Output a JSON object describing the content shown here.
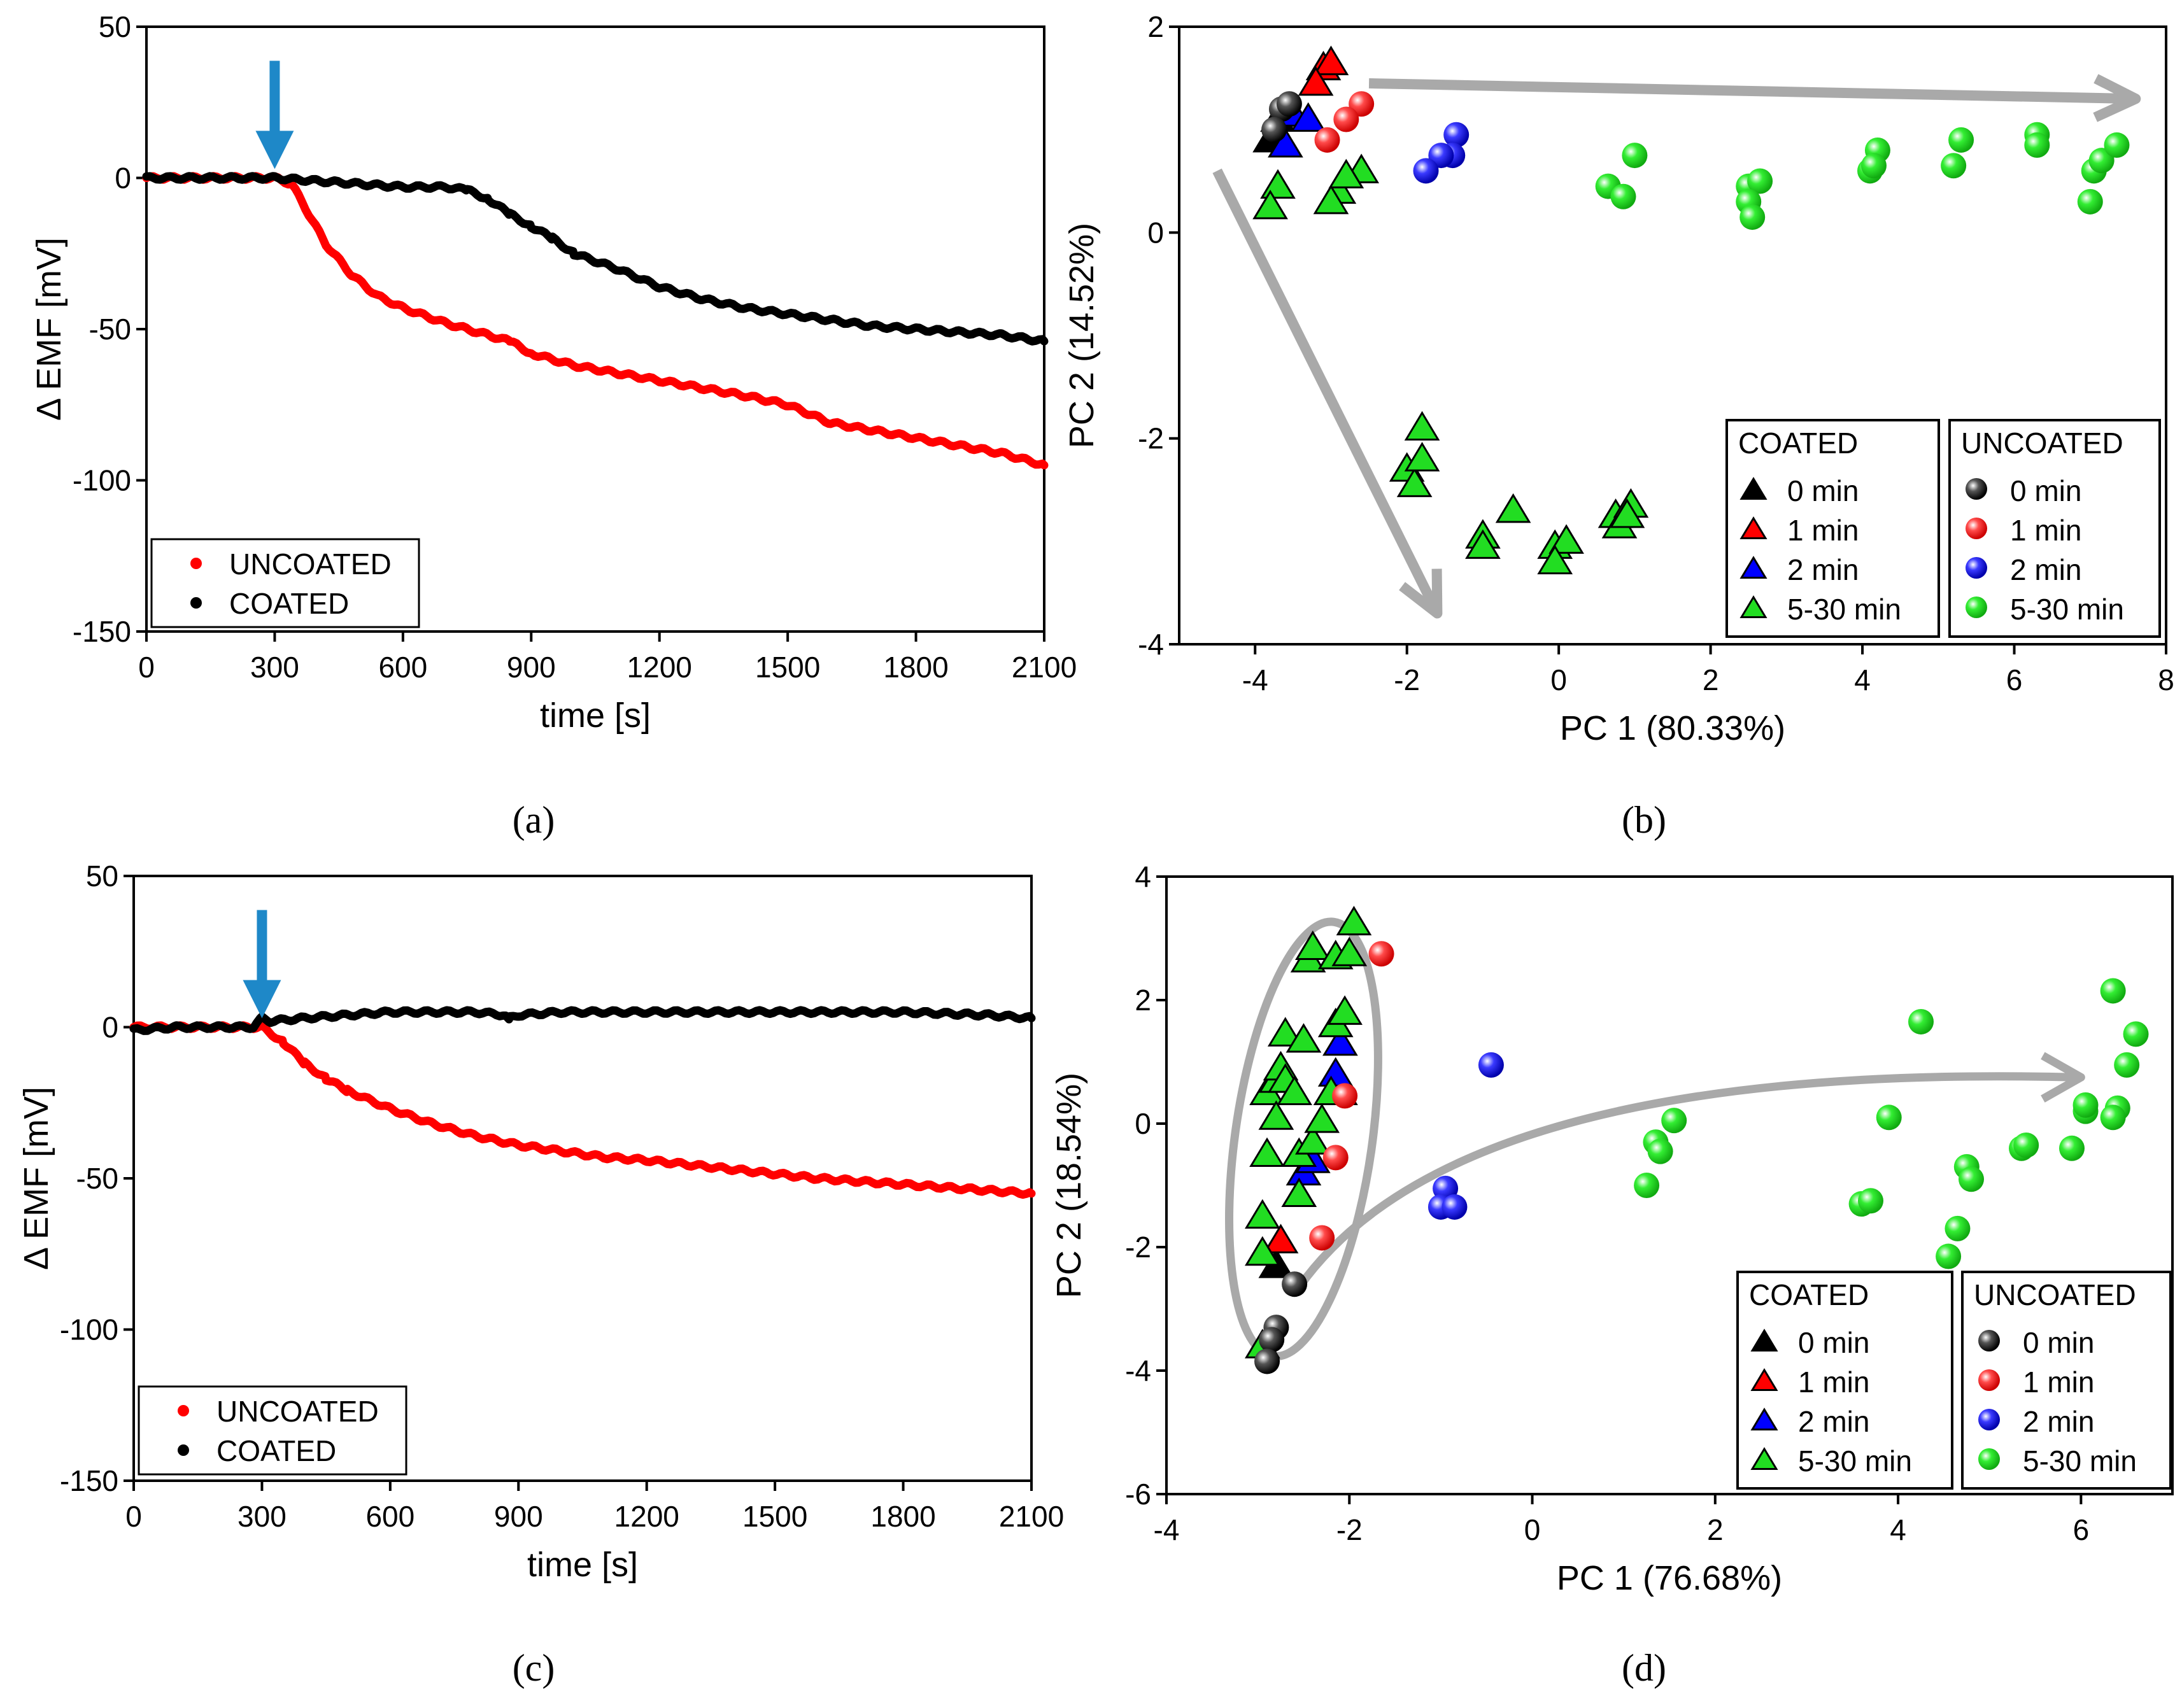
{
  "figure": {
    "panels": [
      {
        "id": "a",
        "label": "(a)"
      },
      {
        "id": "b",
        "label": "(b)"
      },
      {
        "id": "c",
        "label": "(c)"
      },
      {
        "id": "d",
        "label": "(d)"
      }
    ]
  },
  "chart_data": [
    {
      "panel": "(a)",
      "type": "line",
      "xlabel": "time [s]",
      "ylabel": "Δ EMF [mV]",
      "xlim": [
        0,
        2100
      ],
      "ylim": [
        -150,
        50
      ],
      "xticks": [
        0,
        300,
        600,
        900,
        1200,
        1500,
        1800,
        2100
      ],
      "yticks": [
        -150,
        -100,
        -50,
        0,
        50
      ],
      "annotation": "arrow at t = 300 s",
      "arrow_x": 300,
      "legend": [
        "UNCOATED",
        "COATED"
      ],
      "series": [
        {
          "name": "UNCOATED",
          "color": "#ff0000",
          "x": [
            0,
            100,
            200,
            300,
            340,
            380,
            420,
            480,
            540,
            600,
            700,
            800,
            850,
            900,
            1000,
            1200,
            1400,
            1500,
            1600,
            1800,
            2000,
            2100
          ],
          "y": [
            0,
            0,
            0,
            0,
            -2,
            -12,
            -22,
            -32,
            -39,
            -43,
            -48,
            -52,
            -54,
            -58,
            -62,
            -67,
            -72,
            -75,
            -81,
            -86,
            -91,
            -95
          ]
        },
        {
          "name": "COATED",
          "color": "#000000",
          "x": [
            0,
            100,
            200,
            300,
            400,
            500,
            600,
            700,
            750,
            800,
            850,
            900,
            950,
            1000,
            1100,
            1200,
            1300,
            1400,
            1500,
            1600,
            1700,
            1800,
            1900,
            2000,
            2100
          ],
          "y": [
            0,
            0,
            0,
            0,
            -1,
            -2,
            -3,
            -3,
            -4,
            -7,
            -12,
            -16,
            -20,
            -25,
            -30,
            -36,
            -40,
            -43,
            -45,
            -47,
            -49,
            -50,
            -51,
            -52,
            -54
          ]
        }
      ]
    },
    {
      "panel": "(b)",
      "type": "scatter",
      "xlabel": "PC 1 (80.33%)",
      "ylabel": "PC 2 (14.52%)",
      "xlim": [
        -5,
        8
      ],
      "ylim": [
        -4,
        2
      ],
      "xticks": [
        -4,
        -2,
        0,
        2,
        4,
        6,
        8
      ],
      "yticks": [
        -4,
        -2,
        0,
        2
      ],
      "annotation": "grey arrows from origin cluster",
      "arrows": [
        {
          "from": [
            -2.5,
            1.45
          ],
          "to": [
            7.6,
            1.3
          ]
        },
        {
          "from": [
            -4.5,
            0.6
          ],
          "to": [
            -1.6,
            -3.7
          ]
        }
      ],
      "legend_groups": [
        {
          "title": "COATED",
          "marker": "triangle",
          "entries": [
            "0 min",
            "1 min",
            "2 min",
            "5-30 min"
          ]
        },
        {
          "title": "UNCOATED",
          "marker": "sphere",
          "entries": [
            "0 min",
            "1 min",
            "2 min",
            "5-30 min"
          ]
        }
      ],
      "series": [
        {
          "name": "COATED 0 min",
          "marker": "triangle",
          "color": "#000000",
          "points": [
            [
              -3.8,
              0.9
            ],
            [
              -3.7,
              1.1
            ],
            [
              -3.6,
              1.2
            ]
          ]
        },
        {
          "name": "COATED 1 min",
          "marker": "triangle",
          "color": "#ff0000",
          "points": [
            [
              -3.1,
              1.6
            ],
            [
              -3.0,
              1.65
            ],
            [
              -3.2,
              1.45
            ]
          ]
        },
        {
          "name": "COATED 2 min",
          "marker": "triangle",
          "color": "#0000ff",
          "points": [
            [
              -3.5,
              1.15
            ],
            [
              -3.3,
              1.1
            ],
            [
              -3.6,
              0.85
            ]
          ]
        },
        {
          "name": "COATED 5-30 min",
          "marker": "triangle",
          "color": "#22dd22",
          "points": [
            [
              -3.7,
              0.45
            ],
            [
              -3.8,
              0.25
            ],
            [
              -2.9,
              0.4
            ],
            [
              -2.6,
              0.6
            ],
            [
              -2.8,
              0.55
            ],
            [
              -3.0,
              0.3
            ],
            [
              -1.8,
              -1.9
            ],
            [
              -2.0,
              -2.3
            ],
            [
              -1.9,
              -2.45
            ],
            [
              -1.8,
              -2.2
            ],
            [
              -1.0,
              -2.95
            ],
            [
              -1.0,
              -3.05
            ],
            [
              -0.6,
              -2.7
            ],
            [
              -0.05,
              -3.05
            ],
            [
              0.1,
              -3.0
            ],
            [
              -0.05,
              -3.2
            ],
            [
              0.75,
              -2.75
            ],
            [
              0.8,
              -2.85
            ],
            [
              0.95,
              -2.65
            ],
            [
              0.9,
              -2.75
            ]
          ]
        },
        {
          "name": "UNCOATED 0 min",
          "marker": "sphere",
          "color": "#000000",
          "points": [
            [
              -3.65,
              1.2
            ],
            [
              -3.55,
              1.25
            ],
            [
              -3.75,
              1.0
            ]
          ]
        },
        {
          "name": "UNCOATED 1 min",
          "marker": "sphere",
          "color": "#ff0000",
          "points": [
            [
              -2.6,
              1.25
            ],
            [
              -2.8,
              1.1
            ],
            [
              -3.05,
              0.9
            ]
          ]
        },
        {
          "name": "UNCOATED 2 min",
          "marker": "sphere",
          "color": "#0000ff",
          "points": [
            [
              -1.35,
              0.95
            ],
            [
              -1.4,
              0.75
            ],
            [
              -1.55,
              0.75
            ],
            [
              -1.75,
              0.6
            ]
          ]
        },
        {
          "name": "UNCOATED 5-30 min",
          "marker": "sphere",
          "color": "#22dd22",
          "points": [
            [
              0.65,
              0.45
            ],
            [
              0.85,
              0.35
            ],
            [
              1.0,
              0.75
            ],
            [
              2.5,
              0.45
            ],
            [
              2.65,
              0.5
            ],
            [
              2.5,
              0.3
            ],
            [
              2.55,
              0.15
            ],
            [
              4.1,
              0.6
            ],
            [
              4.2,
              0.8
            ],
            [
              4.15,
              0.65
            ],
            [
              5.2,
              0.65
            ],
            [
              5.3,
              0.9
            ],
            [
              6.3,
              0.95
            ],
            [
              6.3,
              0.85
            ],
            [
              7.0,
              0.3
            ],
            [
              7.05,
              0.6
            ],
            [
              7.15,
              0.7
            ],
            [
              7.35,
              0.85
            ]
          ]
        }
      ]
    },
    {
      "panel": "(c)",
      "type": "line",
      "xlabel": "time [s]",
      "ylabel": "Δ EMF [mV]",
      "xlim": [
        0,
        2100
      ],
      "ylim": [
        -150,
        50
      ],
      "xticks": [
        0,
        300,
        600,
        900,
        1200,
        1500,
        1800,
        2100
      ],
      "yticks": [
        -150,
        -100,
        -50,
        0,
        50
      ],
      "annotation": "arrow at t = 300 s",
      "arrow_x": 300,
      "legend": [
        "UNCOATED",
        "COATED"
      ],
      "series": [
        {
          "name": "UNCOATED",
          "color": "#ff0000",
          "x": [
            0,
            100,
            200,
            300,
            350,
            400,
            450,
            500,
            600,
            700,
            800,
            900,
            1000,
            1100,
            1200,
            1400,
            1600,
            1800,
            2000,
            2100
          ],
          "y": [
            0,
            0,
            0,
            0,
            -5,
            -12,
            -17,
            -21,
            -27,
            -32,
            -36,
            -39,
            -41,
            -43,
            -44,
            -47,
            -50,
            -52,
            -54,
            -55
          ]
        },
        {
          "name": "COATED",
          "color": "#000000",
          "x": [
            0,
            100,
            200,
            280,
            300,
            320,
            400,
            500,
            600,
            700,
            800,
            870,
            880,
            900,
            1000,
            1200,
            1400,
            1600,
            1800,
            2000,
            2100
          ],
          "y": [
            -1,
            0,
            0,
            0,
            3,
            2,
            3,
            4,
            5,
            5,
            5,
            4,
            3,
            4,
            5,
            5,
            5,
            5,
            5,
            4,
            3
          ]
        }
      ]
    },
    {
      "panel": "(d)",
      "type": "scatter",
      "xlabel": "PC 1 (76.68%)",
      "ylabel": "PC 2 (18.54%)",
      "xlim": [
        -4,
        7
      ],
      "ylim": [
        -6,
        4
      ],
      "xticks": [
        -4,
        -2,
        0,
        2,
        4,
        6
      ],
      "yticks": [
        -6,
        -4,
        -2,
        0,
        2,
        4
      ],
      "annotation": "grey ellipse around origin cluster and curved arrow to the right",
      "ellipse": {
        "cx": -2.5,
        "cy": -0.25,
        "rx": 0.75,
        "ry": 3.55
      },
      "arrow": {
        "from": [
          -2.55,
          -2.65
        ],
        "control": [
          -0.8,
          1.0
        ],
        "to": [
          6.0,
          0.75
        ]
      },
      "legend_groups": [
        {
          "title": "COATED",
          "marker": "triangle",
          "entries": [
            "0 min",
            "1 min",
            "2 min",
            "5-30 min"
          ]
        },
        {
          "title": "UNCOATED",
          "marker": "sphere",
          "entries": [
            "0 min",
            "1 min",
            "2 min",
            "5-30 min"
          ]
        }
      ],
      "series": [
        {
          "name": "COATED 0 min",
          "marker": "triangle",
          "color": "#000000",
          "points": [
            [
              -2.8,
              -2.3
            ],
            [
              -2.1,
              0.5
            ]
          ]
        },
        {
          "name": "COATED 1 min",
          "marker": "triangle",
          "color": "#ff0000",
          "points": [
            [
              -2.75,
              -1.9
            ]
          ]
        },
        {
          "name": "COATED 2 min",
          "marker": "triangle",
          "color": "#0000ff",
          "points": [
            [
              -2.5,
              -0.8
            ],
            [
              -2.15,
              0.8
            ],
            [
              -2.1,
              1.3
            ],
            [
              -2.4,
              -0.6
            ]
          ]
        },
        {
          "name": "COATED 5-30 min",
          "marker": "triangle",
          "color": "#22dd22",
          "points": [
            [
              -2.95,
              -3.6
            ],
            [
              -2.95,
              -2.1
            ],
            [
              -2.95,
              -1.5
            ],
            [
              -2.9,
              -0.5
            ],
            [
              -2.9,
              0.5
            ],
            [
              -2.8,
              0.1
            ],
            [
              -2.8,
              0.7
            ],
            [
              -2.75,
              0.9
            ],
            [
              -2.7,
              0.7
            ],
            [
              -2.7,
              1.45
            ],
            [
              -2.6,
              0.5
            ],
            [
              -2.5,
              1.35
            ],
            [
              -2.45,
              2.65
            ],
            [
              -2.4,
              2.85
            ],
            [
              -2.55,
              -1.15
            ],
            [
              -2.55,
              -0.5
            ],
            [
              -2.4,
              -0.3
            ],
            [
              -2.3,
              0.05
            ],
            [
              -2.2,
              0.5
            ],
            [
              -2.15,
              1.6
            ],
            [
              -2.05,
              1.8
            ],
            [
              -2.15,
              2.7
            ],
            [
              -2.0,
              2.75
            ],
            [
              -1.95,
              3.25
            ]
          ]
        },
        {
          "name": "UNCOATED 0 min",
          "marker": "sphere",
          "color": "#000000",
          "points": [
            [
              -2.6,
              -2.6
            ],
            [
              -2.8,
              -3.3
            ],
            [
              -2.85,
              -3.5
            ],
            [
              -2.9,
              -3.85
            ]
          ]
        },
        {
          "name": "UNCOATED 1 min",
          "marker": "sphere",
          "color": "#ff0000",
          "points": [
            [
              -1.65,
              2.75
            ],
            [
              -2.05,
              0.45
            ],
            [
              -2.15,
              -0.55
            ],
            [
              -2.3,
              -1.85
            ]
          ]
        },
        {
          "name": "UNCOATED 2 min",
          "marker": "sphere",
          "color": "#0000ff",
          "points": [
            [
              -0.45,
              0.95
            ],
            [
              -0.95,
              -1.05
            ],
            [
              -1.0,
              -1.35
            ],
            [
              -0.85,
              -1.35
            ]
          ]
        },
        {
          "name": "UNCOATED 5-30 min",
          "marker": "sphere",
          "color": "#22dd22",
          "points": [
            [
              1.25,
              -1.0
            ],
            [
              1.35,
              -0.3
            ],
            [
              1.4,
              -0.45
            ],
            [
              1.55,
              0.05
            ],
            [
              3.6,
              -1.3
            ],
            [
              3.7,
              -1.25
            ],
            [
              3.9,
              0.1
            ],
            [
              4.25,
              1.65
            ],
            [
              4.55,
              -2.15
            ],
            [
              4.65,
              -1.7
            ],
            [
              4.75,
              -0.7
            ],
            [
              4.8,
              -0.9
            ],
            [
              5.35,
              -0.4
            ],
            [
              5.4,
              -0.35
            ],
            [
              5.9,
              -0.4
            ],
            [
              6.05,
              0.2
            ],
            [
              6.05,
              0.3
            ],
            [
              6.35,
              2.15
            ],
            [
              6.4,
              0.25
            ],
            [
              6.35,
              0.1
            ],
            [
              6.5,
              0.95
            ],
            [
              6.6,
              1.45
            ]
          ]
        }
      ]
    }
  ]
}
